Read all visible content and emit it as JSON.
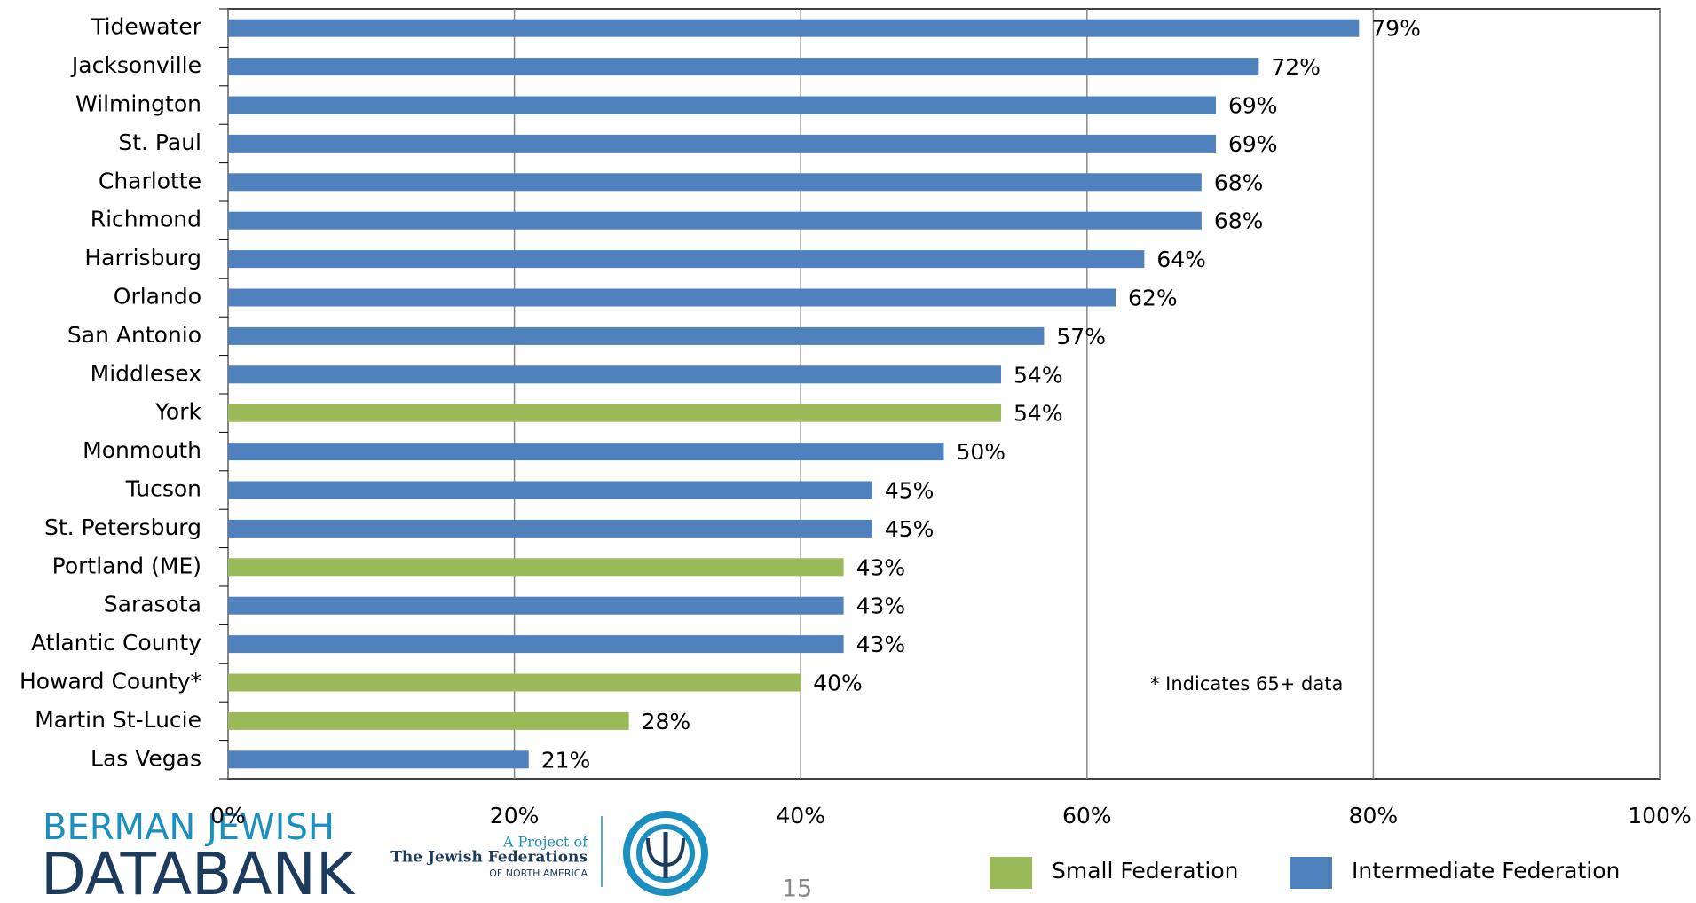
{
  "chart_data": {
    "type": "bar",
    "orientation": "horizontal",
    "categories": [
      "Tidewater",
      "Jacksonville",
      "Wilmington",
      "St. Paul",
      "Charlotte",
      "Richmond",
      "Harrisburg",
      "Orlando",
      "San Antonio",
      "Middlesex",
      "York",
      "Monmouth",
      "Tucson",
      "St. Petersburg",
      "Portland (ME)",
      "Sarasota",
      "Atlantic County",
      "Howard County*",
      "Martin St-Lucie",
      "Las Vegas"
    ],
    "series": [
      {
        "name": "Small Federation",
        "color": "#9bbb59",
        "values": [
          null,
          null,
          null,
          null,
          null,
          null,
          null,
          null,
          null,
          null,
          54,
          null,
          null,
          null,
          43,
          null,
          null,
          40,
          28,
          null
        ],
        "value_labels": [
          null,
          null,
          null,
          null,
          null,
          null,
          null,
          null,
          null,
          null,
          "54%",
          null,
          null,
          null,
          "43%",
          null,
          null,
          "40%",
          "28%",
          null
        ]
      },
      {
        "name": "Intermediate Federation",
        "color": "#4f81bd",
        "values": [
          79,
          72,
          69,
          69,
          68,
          68,
          64,
          62,
          57,
          54,
          null,
          50,
          45,
          45,
          null,
          43,
          43,
          null,
          null,
          21
        ],
        "value_labels": [
          "79%",
          "72%",
          "69%",
          "69%",
          "68%",
          "68%",
          "64%",
          "62%",
          "57%",
          "54%",
          null,
          "50%",
          "45%",
          "45%",
          null,
          "43%",
          "43%",
          null,
          null,
          "21%"
        ]
      }
    ],
    "xlim": [
      0,
      100
    ],
    "xticks": [
      {
        "value": 0,
        "label": "0%"
      },
      {
        "value": 20,
        "label": "20%"
      },
      {
        "value": 40,
        "label": "40%"
      },
      {
        "value": 60,
        "label": "60%"
      },
      {
        "value": 80,
        "label": "80%"
      },
      {
        "value": 100,
        "label": "100%"
      }
    ],
    "grid": true,
    "legend": "bottom right",
    "annotation": "* Indicates 65+ data"
  },
  "footer": {
    "page_number": "15",
    "logo_line1": "BERMAN JEWISH",
    "logo_line2": "DATABANK",
    "project_of": "A Project of",
    "federations": "The Jewish Federations",
    "north_america": "OF NORTH AMERICA"
  }
}
